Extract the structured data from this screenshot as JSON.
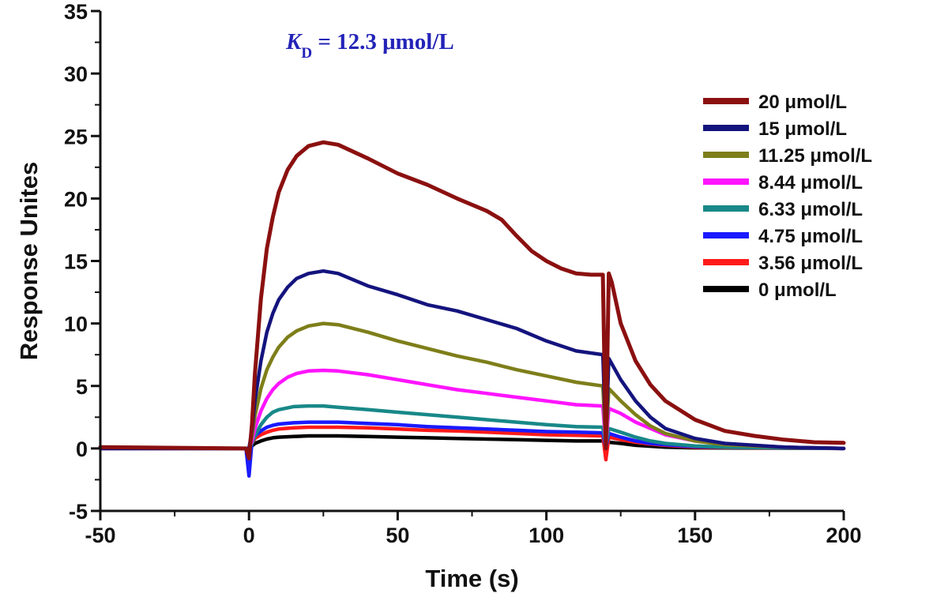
{
  "chart_data": {
    "type": "line",
    "title": "",
    "xlabel": "Time (s)",
    "ylabel": "Response Unites",
    "xlim": [
      -50,
      200
    ],
    "ylim": [
      -5,
      35
    ],
    "x_ticks": [
      -50,
      0,
      50,
      100,
      150,
      200
    ],
    "y_ticks": [
      -5,
      0,
      5,
      10,
      15,
      20,
      25,
      30,
      35
    ],
    "grid": false,
    "legend_position": "right",
    "annotation": {
      "main": "K",
      "sub": "D",
      "rest": " = 12.3 μmol/L",
      "color": "#2323b8"
    },
    "series": [
      {
        "name": "20 μmol/L",
        "color": "#8b1010",
        "points": [
          [
            -50,
            0.1
          ],
          [
            -1,
            0
          ],
          [
            0,
            -0.8
          ],
          [
            1,
            2
          ],
          [
            2,
            6
          ],
          [
            4,
            12
          ],
          [
            6,
            16
          ],
          [
            8,
            18.5
          ],
          [
            10,
            20.5
          ],
          [
            13,
            22.3
          ],
          [
            16,
            23.4
          ],
          [
            20,
            24.2
          ],
          [
            25,
            24.5
          ],
          [
            30,
            24.3
          ],
          [
            40,
            23.2
          ],
          [
            50,
            22
          ],
          [
            60,
            21.1
          ],
          [
            70,
            20
          ],
          [
            80,
            19
          ],
          [
            85,
            18.3
          ],
          [
            90,
            17
          ],
          [
            95,
            15.8
          ],
          [
            100,
            15
          ],
          [
            105,
            14.4
          ],
          [
            110,
            14
          ],
          [
            115,
            13.9
          ],
          [
            119,
            13.9
          ],
          [
            120,
            0
          ],
          [
            121,
            14
          ],
          [
            122,
            13.3
          ],
          [
            125,
            10
          ],
          [
            130,
            7
          ],
          [
            135,
            5.1
          ],
          [
            140,
            3.8
          ],
          [
            150,
            2.3
          ],
          [
            160,
            1.4
          ],
          [
            170,
            1
          ],
          [
            180,
            0.7
          ],
          [
            190,
            0.5
          ],
          [
            200,
            0.45
          ]
        ]
      },
      {
        "name": "15 μmol/L",
        "color": "#14147e",
        "points": [
          [
            -50,
            0
          ],
          [
            0,
            0
          ],
          [
            1,
            1.5
          ],
          [
            2,
            3.8
          ],
          [
            4,
            7
          ],
          [
            6,
            9.3
          ],
          [
            8,
            10.8
          ],
          [
            10,
            11.9
          ],
          [
            13,
            12.9
          ],
          [
            16,
            13.6
          ],
          [
            20,
            14
          ],
          [
            25,
            14.2
          ],
          [
            30,
            14
          ],
          [
            40,
            13
          ],
          [
            50,
            12.3
          ],
          [
            60,
            11.5
          ],
          [
            70,
            11
          ],
          [
            80,
            10.3
          ],
          [
            90,
            9.6
          ],
          [
            100,
            8.6
          ],
          [
            110,
            7.8
          ],
          [
            119,
            7.5
          ],
          [
            120,
            0.5
          ],
          [
            121,
            7.2
          ],
          [
            125,
            5.5
          ],
          [
            130,
            3.8
          ],
          [
            135,
            2.5
          ],
          [
            140,
            1.6
          ],
          [
            150,
            0.8
          ],
          [
            160,
            0.4
          ],
          [
            180,
            0.1
          ],
          [
            200,
            0
          ]
        ]
      },
      {
        "name": "11.25 μmol/L",
        "color": "#7e7e1a",
        "points": [
          [
            -50,
            0
          ],
          [
            0,
            0
          ],
          [
            1,
            1
          ],
          [
            2,
            2.6
          ],
          [
            4,
            4.8
          ],
          [
            6,
            6.3
          ],
          [
            8,
            7.3
          ],
          [
            10,
            8.1
          ],
          [
            13,
            8.9
          ],
          [
            16,
            9.4
          ],
          [
            20,
            9.8
          ],
          [
            25,
            10
          ],
          [
            30,
            9.9
          ],
          [
            40,
            9.3
          ],
          [
            50,
            8.6
          ],
          [
            60,
            8
          ],
          [
            70,
            7.4
          ],
          [
            80,
            6.9
          ],
          [
            90,
            6.3
          ],
          [
            100,
            5.8
          ],
          [
            110,
            5.3
          ],
          [
            119,
            5
          ],
          [
            120,
            0.3
          ],
          [
            121,
            4.8
          ],
          [
            125,
            3.8
          ],
          [
            130,
            2.7
          ],
          [
            135,
            1.8
          ],
          [
            140,
            1.2
          ],
          [
            150,
            0.6
          ],
          [
            160,
            0.3
          ],
          [
            180,
            0.1
          ],
          [
            200,
            0
          ]
        ]
      },
      {
        "name": "8.44 μmol/L",
        "color": "#ff14ff",
        "points": [
          [
            -50,
            0
          ],
          [
            0,
            0
          ],
          [
            1,
            0.6
          ],
          [
            2,
            1.6
          ],
          [
            4,
            3
          ],
          [
            6,
            4
          ],
          [
            8,
            4.7
          ],
          [
            10,
            5.2
          ],
          [
            13,
            5.7
          ],
          [
            16,
            6
          ],
          [
            20,
            6.2
          ],
          [
            25,
            6.25
          ],
          [
            30,
            6.2
          ],
          [
            40,
            5.9
          ],
          [
            50,
            5.5
          ],
          [
            60,
            5.1
          ],
          [
            70,
            4.7
          ],
          [
            80,
            4.4
          ],
          [
            90,
            4.1
          ],
          [
            100,
            3.8
          ],
          [
            110,
            3.5
          ],
          [
            119,
            3.4
          ],
          [
            120,
            0.2
          ],
          [
            121,
            3.2
          ],
          [
            125,
            2.8
          ],
          [
            130,
            2.1
          ],
          [
            135,
            1.6
          ],
          [
            140,
            1.1
          ],
          [
            150,
            0.6
          ],
          [
            160,
            0.35
          ],
          [
            180,
            0.1
          ],
          [
            200,
            0
          ]
        ]
      },
      {
        "name": "6.33 μmol/L",
        "color": "#188888",
        "points": [
          [
            -50,
            0
          ],
          [
            0,
            0
          ],
          [
            1,
            0.4
          ],
          [
            2,
            1
          ],
          [
            4,
            1.9
          ],
          [
            6,
            2.5
          ],
          [
            8,
            2.9
          ],
          [
            10,
            3.1
          ],
          [
            15,
            3.35
          ],
          [
            20,
            3.4
          ],
          [
            25,
            3.4
          ],
          [
            30,
            3.3
          ],
          [
            40,
            3.1
          ],
          [
            50,
            2.9
          ],
          [
            60,
            2.7
          ],
          [
            70,
            2.5
          ],
          [
            80,
            2.3
          ],
          [
            90,
            2.1
          ],
          [
            100,
            1.9
          ],
          [
            110,
            1.75
          ],
          [
            119,
            1.7
          ],
          [
            120,
            0.2
          ],
          [
            121,
            1.6
          ],
          [
            125,
            1.3
          ],
          [
            130,
            0.9
          ],
          [
            135,
            0.6
          ],
          [
            140,
            0.4
          ],
          [
            150,
            0.2
          ],
          [
            160,
            0.1
          ],
          [
            200,
            0
          ]
        ]
      },
      {
        "name": "4.75 μmol/L",
        "color": "#1a1aff",
        "points": [
          [
            -50,
            0
          ],
          [
            -1,
            0
          ],
          [
            0,
            -2.2
          ],
          [
            1,
            0.6
          ],
          [
            2,
            1
          ],
          [
            4,
            1.4
          ],
          [
            6,
            1.7
          ],
          [
            8,
            1.85
          ],
          [
            10,
            1.95
          ],
          [
            15,
            2.05
          ],
          [
            20,
            2.1
          ],
          [
            30,
            2.1
          ],
          [
            40,
            2
          ],
          [
            50,
            1.9
          ],
          [
            60,
            1.75
          ],
          [
            70,
            1.65
          ],
          [
            80,
            1.55
          ],
          [
            90,
            1.45
          ],
          [
            100,
            1.35
          ],
          [
            110,
            1.3
          ],
          [
            119,
            1.25
          ],
          [
            120,
            0.1
          ],
          [
            121,
            1.2
          ],
          [
            125,
            0.9
          ],
          [
            130,
            0.6
          ],
          [
            135,
            0.4
          ],
          [
            140,
            0.3
          ],
          [
            150,
            0.15
          ],
          [
            160,
            0.1
          ],
          [
            200,
            0
          ]
        ]
      },
      {
        "name": "3.56 μmol/L",
        "color": "#ff1a1a",
        "points": [
          [
            -50,
            0
          ],
          [
            0,
            0
          ],
          [
            1,
            0.4
          ],
          [
            2,
            0.8
          ],
          [
            4,
            1.1
          ],
          [
            6,
            1.3
          ],
          [
            8,
            1.45
          ],
          [
            10,
            1.55
          ],
          [
            15,
            1.65
          ],
          [
            20,
            1.7
          ],
          [
            30,
            1.7
          ],
          [
            40,
            1.65
          ],
          [
            50,
            1.55
          ],
          [
            60,
            1.45
          ],
          [
            70,
            1.4
          ],
          [
            80,
            1.3
          ],
          [
            90,
            1.2
          ],
          [
            100,
            1.1
          ],
          [
            110,
            1.05
          ],
          [
            119,
            1
          ],
          [
            120,
            -0.9
          ],
          [
            121,
            0.9
          ],
          [
            125,
            0.7
          ],
          [
            130,
            0.5
          ],
          [
            135,
            0.35
          ],
          [
            140,
            0.25
          ],
          [
            150,
            0.1
          ],
          [
            200,
            0
          ]
        ]
      },
      {
        "name": "0 μmol/L",
        "color": "#000000",
        "points": [
          [
            -50,
            0
          ],
          [
            0,
            0
          ],
          [
            1,
            0.2
          ],
          [
            2,
            0.4
          ],
          [
            4,
            0.6
          ],
          [
            6,
            0.75
          ],
          [
            8,
            0.85
          ],
          [
            10,
            0.9
          ],
          [
            15,
            0.95
          ],
          [
            20,
            1
          ],
          [
            30,
            1
          ],
          [
            40,
            0.95
          ],
          [
            50,
            0.9
          ],
          [
            60,
            0.85
          ],
          [
            70,
            0.8
          ],
          [
            80,
            0.75
          ],
          [
            90,
            0.7
          ],
          [
            100,
            0.65
          ],
          [
            110,
            0.6
          ],
          [
            119,
            0.6
          ],
          [
            120,
            0.3
          ],
          [
            121,
            0.5
          ],
          [
            125,
            0.4
          ],
          [
            130,
            0.25
          ],
          [
            140,
            0.1
          ],
          [
            150,
            0.05
          ],
          [
            200,
            0
          ]
        ]
      }
    ]
  }
}
